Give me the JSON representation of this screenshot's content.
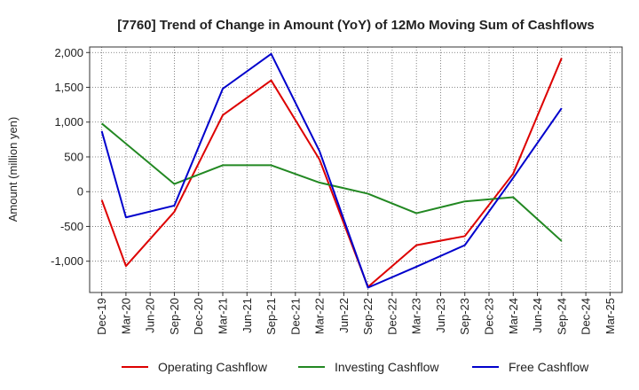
{
  "chart_data": {
    "type": "line",
    "title": "[7760]  Trend of Change in Amount (YoY) of 12Mo Moving Sum of Cashflows",
    "xlabel": "",
    "ylabel": "Amount (million yen)",
    "ylim": [
      -1450,
      2080
    ],
    "yticks": [
      2000,
      1500,
      1000,
      500,
      0,
      -500,
      -1000
    ],
    "ytick_labels": [
      "2,000",
      "1,500",
      "1,000",
      "500",
      "0",
      "-500",
      "-1,000"
    ],
    "categories": [
      "Dec-19",
      "Mar-20",
      "Jun-20",
      "Sep-20",
      "Dec-20",
      "Mar-21",
      "Jun-21",
      "Sep-21",
      "Dec-21",
      "Mar-22",
      "Jun-22",
      "Sep-22",
      "Dec-22",
      "Mar-23",
      "Jun-23",
      "Sep-23",
      "Dec-23",
      "Mar-24",
      "Jun-24",
      "Sep-24",
      "Dec-24",
      "Mar-25"
    ],
    "grid": true,
    "legend_position": "bottom",
    "series": [
      {
        "name": "Operating Cashflow",
        "color": "#dd0000",
        "values": [
          -120,
          -1070,
          null,
          -290,
          null,
          1100,
          null,
          1600,
          null,
          460,
          null,
          -1370,
          null,
          -770,
          null,
          -640,
          null,
          260,
          null,
          1920,
          null,
          null
        ]
      },
      {
        "name": "Investing Cashflow",
        "color": "#228822",
        "values": [
          980,
          null,
          null,
          110,
          null,
          380,
          null,
          380,
          null,
          130,
          null,
          -30,
          null,
          -310,
          null,
          -140,
          null,
          -80,
          null,
          -710,
          null,
          null
        ]
      },
      {
        "name": "Free Cashflow",
        "color": "#0000cc",
        "values": [
          870,
          -370,
          null,
          -200,
          null,
          1480,
          null,
          1980,
          null,
          580,
          null,
          -1380,
          null,
          -1080,
          null,
          -770,
          null,
          200,
          null,
          1200,
          null,
          null
        ]
      }
    ]
  }
}
